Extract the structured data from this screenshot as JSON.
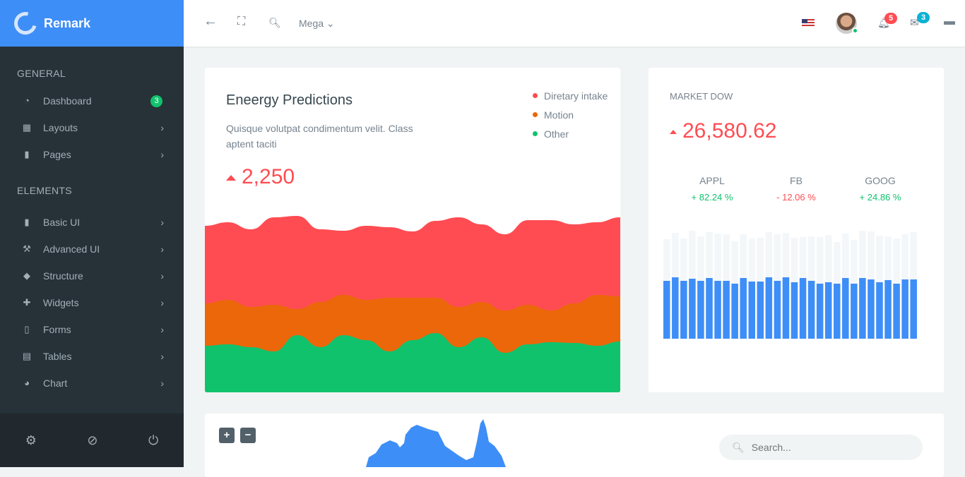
{
  "brand": {
    "name": "Remark"
  },
  "sidebar": {
    "sections": [
      "GENERAL",
      "ELEMENTS"
    ],
    "general": [
      {
        "label": "Dashboard",
        "badge": "3",
        "icon": "gauge-icon"
      },
      {
        "label": "Layouts",
        "icon": "layout-icon"
      },
      {
        "label": "Pages",
        "icon": "file-icon"
      }
    ],
    "elements": [
      {
        "label": "Basic UI",
        "icon": "bookmark-icon"
      },
      {
        "label": "Advanced UI",
        "icon": "hammer-icon"
      },
      {
        "label": "Structure",
        "icon": "puzzle-icon"
      },
      {
        "label": "Widgets",
        "icon": "puzzle-piece-icon"
      },
      {
        "label": "Forms",
        "icon": "book-icon"
      },
      {
        "label": "Tables",
        "icon": "table-icon"
      },
      {
        "label": "Chart",
        "icon": "pie-chart-icon"
      }
    ]
  },
  "topbar": {
    "mega": "Mega",
    "notifications": "5",
    "messages": "3"
  },
  "energy": {
    "title": "Eneergy Predictions",
    "desc": "Quisque volutpat condimentum velit. Class aptent taciti",
    "value": "2,250",
    "legend": [
      {
        "label": "Diretary intake",
        "color": "#ff4c52"
      },
      {
        "label": "Motion",
        "color": "#eb6709"
      },
      {
        "label": "Other",
        "color": "#11c26d"
      }
    ]
  },
  "market": {
    "title": "MARKET DOW",
    "value": "26,580.62",
    "stocks": [
      {
        "name": "APPL",
        "change": "+ 82.24 %",
        "color": "#11c26d"
      },
      {
        "name": "FB",
        "change": "- 12.06 %",
        "color": "#ff4c52"
      },
      {
        "name": "GOOG",
        "change": "+ 24.86 %",
        "color": "#11c26d"
      }
    ]
  },
  "map": {
    "zoom_in": "+",
    "zoom_out": "−",
    "search_placeholder": "Search..."
  },
  "chart_data": [
    {
      "type": "area",
      "title": "Eneergy Predictions",
      "series": [
        {
          "name": "Diretary intake",
          "color": "#ff4c52",
          "values": [
            236,
            241,
            231,
            248,
            250,
            231,
            229,
            236,
            234,
            228,
            243,
            248,
            238,
            224,
            244,
            244,
            238,
            241,
            248
          ]
        },
        {
          "name": "Motion",
          "color": "#eb6709",
          "values": [
            126,
            131,
            121,
            124,
            118,
            128,
            138,
            131,
            134,
            134,
            134,
            121,
            128,
            116,
            124,
            116,
            126,
            138,
            136
          ]
        },
        {
          "name": "Other",
          "color": "#11c26d",
          "values": [
            66,
            68,
            64,
            58,
            81,
            64,
            81,
            74,
            58,
            74,
            84,
            64,
            78,
            56,
            68,
            71,
            70,
            66,
            72
          ]
        }
      ],
      "ylim": [
        0,
        256
      ]
    },
    {
      "type": "bar",
      "title": "MARKET DOW",
      "stacked": true,
      "ylim": [
        0,
        160
      ],
      "series": [
        {
          "name": "value",
          "color": "#3e8ef7",
          "values": [
            82,
            87,
            82,
            85,
            82,
            86,
            82,
            82,
            78,
            86,
            81,
            81,
            87,
            82,
            87,
            80,
            86,
            82,
            78,
            80,
            78,
            86,
            78,
            86,
            84,
            80,
            83,
            78,
            84,
            84
          ]
        },
        {
          "name": "total",
          "color": "#f3f7f9",
          "values": [
            141,
            150,
            142,
            153,
            145,
            151,
            149,
            148,
            138,
            148,
            142,
            143,
            151,
            148,
            150,
            143,
            144,
            145,
            144,
            147,
            137,
            149,
            140,
            153,
            152,
            146,
            145,
            142,
            148,
            151
          ]
        }
      ]
    }
  ]
}
